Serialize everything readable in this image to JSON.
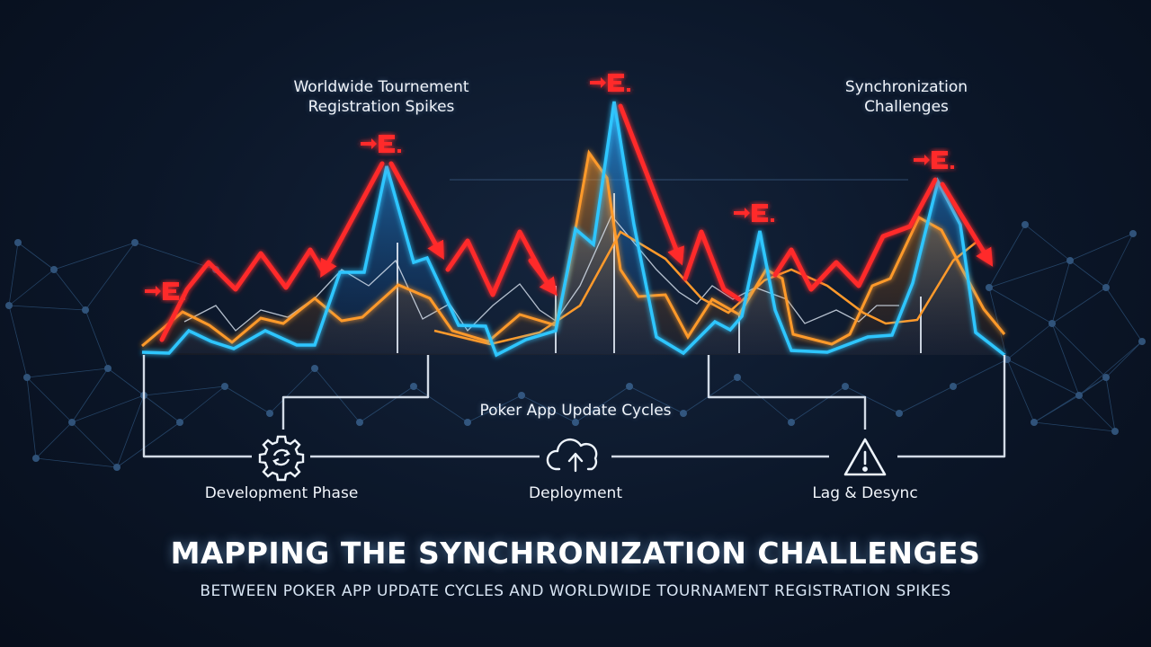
{
  "annotations": {
    "spikes_label_line1": "Worldwide Tournement",
    "spikes_label_line2": "Registration Spikes",
    "sync_label_line1": "Synchronization",
    "sync_label_line2": "Challenges",
    "cycles_label": "Poker App Update Cycles"
  },
  "stages": [
    {
      "label": "Development Phase",
      "icon": "gear-sync-icon"
    },
    {
      "label": "Deployment",
      "icon": "cloud-upload-icon"
    },
    {
      "label": "Lag & Desync",
      "icon": "warning-triangle-icon"
    }
  ],
  "spike_marker_icon": "spike-marker-icon",
  "title": "MAPPING THE SYNCHRONIZATION CHALLENGES",
  "subtitle": "BETWEEN POKER APP UPDATE CYCLES AND WORLDWIDE TOURNAMENT REGISTRATION SPIKES",
  "colors": {
    "registration": "#2fc6ff",
    "updates": "#ff9a2b",
    "spikes": "#ff2a2a",
    "baseline": "#dfe9f5",
    "background": "#0b1628"
  }
}
